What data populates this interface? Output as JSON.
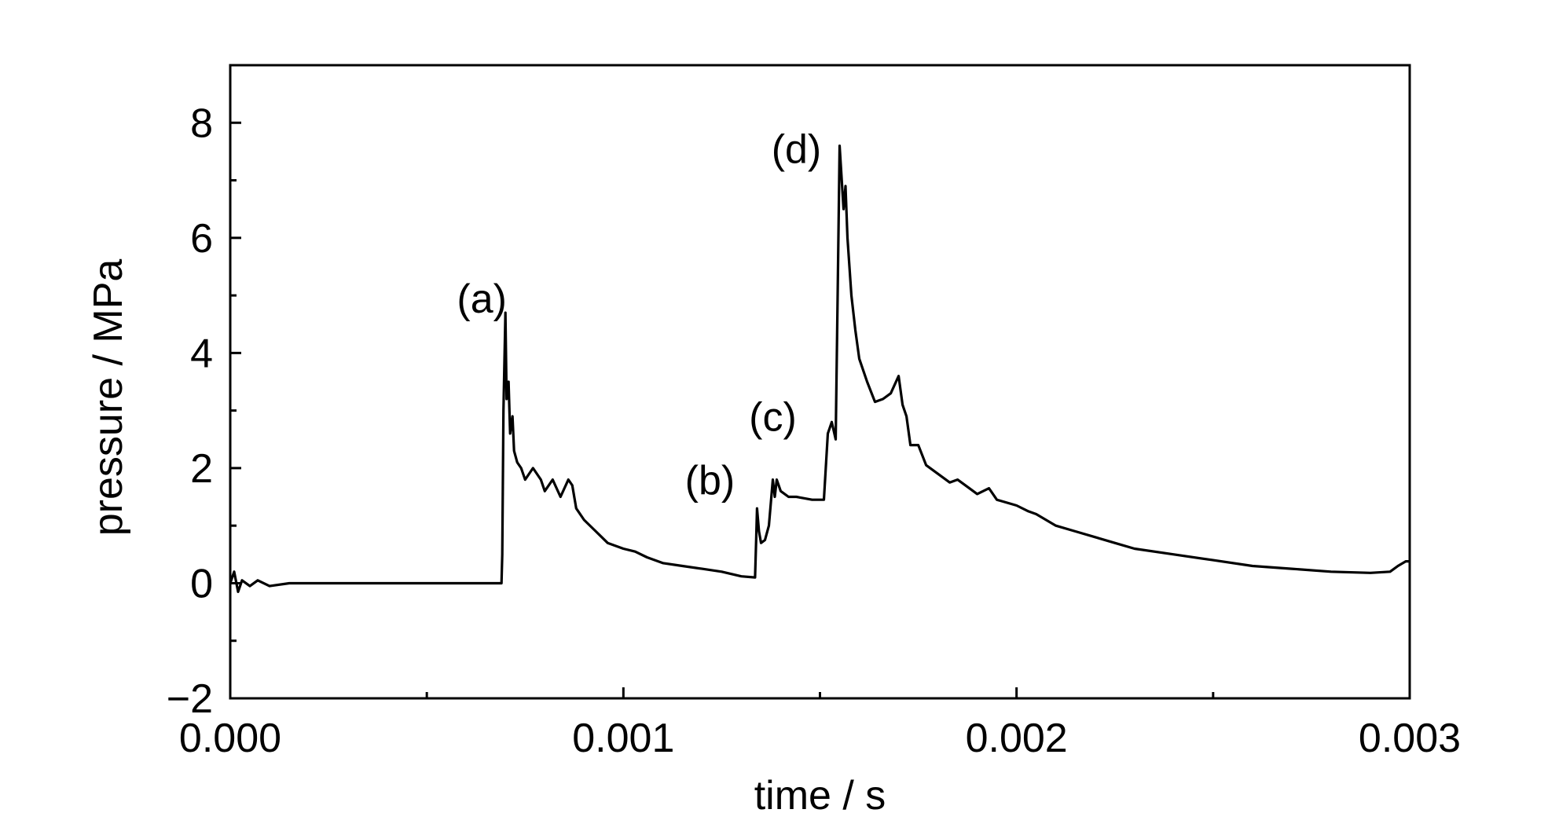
{
  "chart_data": {
    "type": "line",
    "title": "",
    "xlabel": "time / s",
    "ylabel": "pressure / MPa",
    "xlim": [
      0.0,
      0.003
    ],
    "ylim": [
      -2,
      9
    ],
    "grid": false,
    "legend": "none",
    "x_ticks": [
      {
        "value": 0.0,
        "label": "0.000"
      },
      {
        "value": 0.001,
        "label": "0.001"
      },
      {
        "value": 0.002,
        "label": "0.002"
      },
      {
        "value": 0.003,
        "label": "0.003"
      }
    ],
    "x_minor_ticks": [
      0.0005,
      0.0015,
      0.0025
    ],
    "y_ticks": [
      {
        "value": -2,
        "label": "−2"
      },
      {
        "value": 0,
        "label": "0"
      },
      {
        "value": 2,
        "label": "2"
      },
      {
        "value": 4,
        "label": "4"
      },
      {
        "value": 6,
        "label": "6"
      },
      {
        "value": 8,
        "label": "8"
      }
    ],
    "y_minor_ticks": [
      -1,
      1,
      3,
      5,
      7
    ],
    "annotations": [
      {
        "label": "(a)",
        "x": 0.00064,
        "y": 4.7
      },
      {
        "label": "(b)",
        "x": 0.00122,
        "y": 1.55
      },
      {
        "label": "(c)",
        "x": 0.00138,
        "y": 2.65
      },
      {
        "label": "(d)",
        "x": 0.00144,
        "y": 7.3
      }
    ],
    "series": [
      {
        "color": "#000000",
        "x": [
          0.0,
          1e-05,
          2e-05,
          3e-05,
          5e-05,
          7e-05,
          0.0001,
          0.00015,
          0.0002,
          0.0003,
          0.0004,
          0.0005,
          0.0006,
          0.00069,
          0.000692,
          0.000695,
          0.0007,
          0.000703,
          0.000708,
          0.000712,
          0.000718,
          0.000722,
          0.00073,
          0.00074,
          0.00075,
          0.00077,
          0.00079,
          0.0008,
          0.00082,
          0.00084,
          0.00086,
          0.00087,
          0.00088,
          0.0009,
          0.00093,
          0.00096,
          0.001,
          0.00103,
          0.00106,
          0.0011,
          0.00115,
          0.0012,
          0.00125,
          0.0013,
          0.001335,
          0.001338,
          0.00134,
          0.001345,
          0.00135,
          0.00136,
          0.00137,
          0.00138,
          0.001385,
          0.00139,
          0.0014,
          0.00142,
          0.00144,
          0.00148,
          0.00151,
          0.00152,
          0.001525,
          0.00153,
          0.00154,
          0.001545,
          0.00155,
          0.00156,
          0.001565,
          0.00157,
          0.00158,
          0.00159,
          0.0016,
          0.00162,
          0.00164,
          0.00166,
          0.00168,
          0.0017,
          0.00171,
          0.00172,
          0.00173,
          0.00175,
          0.00177,
          0.0018,
          0.00183,
          0.00185,
          0.00188,
          0.0019,
          0.00193,
          0.00195,
          0.002,
          0.00203,
          0.00205,
          0.0021,
          0.00215,
          0.0022,
          0.00225,
          0.0023,
          0.0024,
          0.0025,
          0.0026,
          0.0027,
          0.0028,
          0.0029,
          0.00295,
          0.00297,
          0.00299,
          0.003
        ],
        "y": [
          0.0,
          0.2,
          -0.15,
          0.05,
          -0.05,
          0.05,
          -0.05,
          0.0,
          0.0,
          0.0,
          0.0,
          0.0,
          0.0,
          0.0,
          0.5,
          3.0,
          4.7,
          3.2,
          3.5,
          2.6,
          2.9,
          2.3,
          2.1,
          2.0,
          1.8,
          2.0,
          1.8,
          1.6,
          1.8,
          1.5,
          1.8,
          1.7,
          1.3,
          1.1,
          0.9,
          0.7,
          0.6,
          0.55,
          0.45,
          0.35,
          0.3,
          0.25,
          0.2,
          0.12,
          0.1,
          0.8,
          1.3,
          0.9,
          0.7,
          0.75,
          1.0,
          1.8,
          1.5,
          1.8,
          1.6,
          1.5,
          1.5,
          1.45,
          1.45,
          2.6,
          2.7,
          2.8,
          2.5,
          5.0,
          7.6,
          6.5,
          6.9,
          6.0,
          5.0,
          4.4,
          3.9,
          3.5,
          3.15,
          3.2,
          3.3,
          3.6,
          3.1,
          2.9,
          2.4,
          2.4,
          2.05,
          1.9,
          1.75,
          1.8,
          1.65,
          1.55,
          1.65,
          1.45,
          1.35,
          1.25,
          1.2,
          1.0,
          0.9,
          0.8,
          0.7,
          0.6,
          0.5,
          0.4,
          0.3,
          0.25,
          0.2,
          0.18,
          0.2,
          0.3,
          0.38,
          0.38
        ]
      }
    ]
  }
}
